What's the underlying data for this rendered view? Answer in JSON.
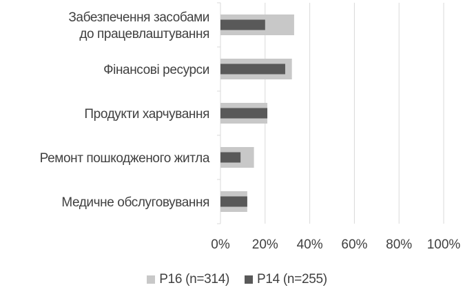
{
  "chart_data": {
    "type": "bar",
    "orientation": "horizontal",
    "categories": [
      [
        "Забезпечення засобами",
        "до працевлаштування"
      ],
      [
        "Фінансові ресурси"
      ],
      [
        "Продукти харчування"
      ],
      [
        "Ремонт пошкодженого житла"
      ],
      [
        "Медичне обслуговування"
      ]
    ],
    "series": [
      {
        "name": "P16 (n=314)",
        "values": [
          33,
          32,
          21,
          15,
          12
        ],
        "color": "#c8c8c8"
      },
      {
        "name": "P14 (n=255)",
        "values": [
          20,
          29,
          21,
          9,
          12
        ],
        "color": "#595959"
      }
    ],
    "xlim": [
      0,
      100
    ],
    "xticks": [
      "0%",
      "20%",
      "40%",
      "60%",
      "80%",
      "100%"
    ],
    "grid": true,
    "legend_position": "bottom"
  }
}
